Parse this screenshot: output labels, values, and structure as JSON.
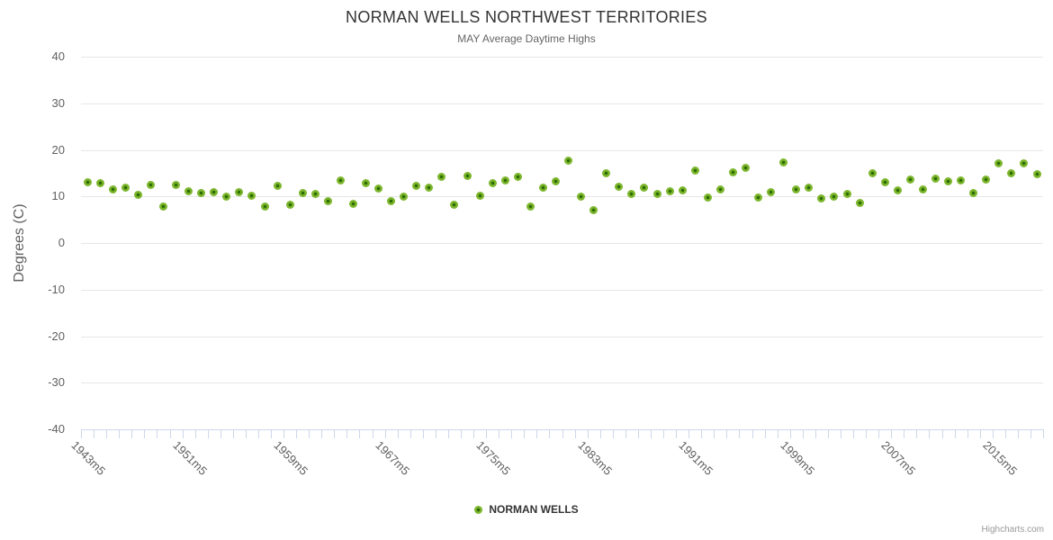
{
  "title": "NORMAN WELLS NORTHWEST TERRITORIES",
  "subtitle": "MAY Average Daytime Highs",
  "legend": {
    "label": "NORMAN WELLS"
  },
  "credits": "Highcharts.com",
  "chart_data": {
    "type": "scatter",
    "title": "NORMAN WELLS NORTHWEST TERRITORIES",
    "subtitle": "MAY Average Daytime Highs",
    "xlabel": "",
    "ylabel": "Degrees (C)",
    "ylim": [
      -40,
      40
    ],
    "y_tick_interval": 10,
    "y_tick_labels": [
      "40",
      "30",
      "20",
      "10",
      "0",
      "-10",
      "-20",
      "-30",
      "-40"
    ],
    "x_tick_labels": [
      {
        "year": 1943,
        "label": "1943m5"
      },
      {
        "year": 1951,
        "label": "1951m5"
      },
      {
        "year": 1959,
        "label": "1959m5"
      },
      {
        "year": 1967,
        "label": "1967m5"
      },
      {
        "year": 1975,
        "label": "1975m5"
      },
      {
        "year": 1983,
        "label": "1983m5"
      },
      {
        "year": 1991,
        "label": "1991m5"
      },
      {
        "year": 1999,
        "label": "1999m5"
      },
      {
        "year": 2007,
        "label": "2007m5"
      },
      {
        "year": 2015,
        "label": "2015m5"
      }
    ],
    "x_label_rotation": 45,
    "grid": true,
    "legend_position": "bottom",
    "series": [
      {
        "name": "NORMAN WELLS",
        "x": [
          1943,
          1944,
          1945,
          1946,
          1947,
          1948,
          1949,
          1950,
          1951,
          1952,
          1953,
          1954,
          1955,
          1956,
          1957,
          1958,
          1959,
          1960,
          1961,
          1962,
          1963,
          1964,
          1965,
          1966,
          1967,
          1968,
          1969,
          1970,
          1971,
          1972,
          1973,
          1974,
          1975,
          1976,
          1977,
          1978,
          1979,
          1980,
          1981,
          1982,
          1983,
          1984,
          1985,
          1986,
          1987,
          1988,
          1989,
          1990,
          1991,
          1992,
          1993,
          1994,
          1995,
          1996,
          1997,
          1998,
          1999,
          2000,
          2001,
          2002,
          2003,
          2004,
          2005,
          2006,
          2007,
          2008,
          2009,
          2010,
          2011,
          2012,
          2013,
          2014,
          2015,
          2016,
          2017,
          2018
        ],
        "values": [
          13.1,
          12.9,
          11.5,
          11.9,
          10.4,
          12.4,
          7.8,
          12.5,
          11.2,
          10.8,
          11.0,
          10.0,
          11.0,
          10.1,
          7.8,
          12.2,
          8.2,
          10.8,
          10.6,
          9.0,
          13.4,
          8.4,
          12.9,
          11.7,
          9.0,
          10.0,
          12.3,
          11.8,
          14.3,
          8.3,
          14.4,
          10.2,
          12.9,
          13.5,
          14.2,
          7.9,
          11.8,
          13.2,
          17.7,
          10.0,
          7.1,
          14.9,
          12.1,
          10.6,
          11.8,
          10.6,
          11.2,
          11.4,
          15.6,
          9.7,
          11.6,
          15.1,
          16.1,
          9.7,
          11.0,
          17.3,
          11.5,
          11.8,
          9.5,
          10.0,
          10.6,
          8.6,
          14.9,
          13.0,
          11.3,
          13.6,
          11.5,
          13.8,
          13.2,
          13.5,
          10.8,
          13.7,
          17.1,
          14.9,
          17.1,
          14.8
        ]
      }
    ],
    "colors": {
      "point": "#7cb62d",
      "point_center": "#2e6c04",
      "grid": "#e6e6e6",
      "axis_line": "#ccd6eb",
      "title_text": "#333333",
      "axis_text": "#606060",
      "credits_text": "#999999"
    }
  }
}
